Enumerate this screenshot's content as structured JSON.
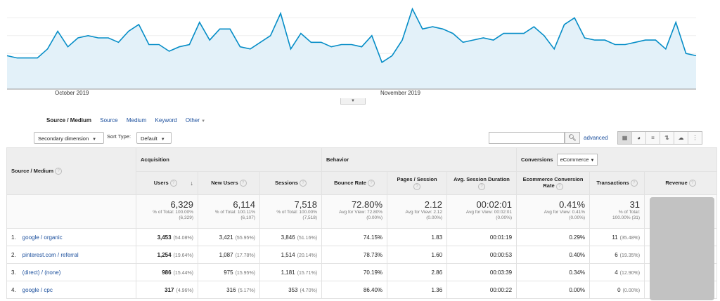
{
  "chart_data": {
    "type": "area",
    "x_labels": [
      "October 2019",
      "November 2019"
    ],
    "values": [
      15,
      14,
      14,
      14,
      18,
      26,
      19,
      23,
      24,
      23,
      23,
      21,
      26,
      29,
      20,
      20,
      17,
      19,
      20,
      30,
      22,
      27,
      27,
      19,
      18,
      21,
      24,
      34,
      18,
      25,
      21,
      21,
      19,
      20,
      20,
      19,
      24,
      12,
      15,
      22,
      36,
      27,
      28,
      27,
      25,
      21,
      22,
      23,
      22,
      25,
      25,
      25,
      28,
      24,
      18,
      29,
      32,
      23,
      22,
      22,
      20,
      20,
      21,
      22,
      22,
      18,
      30,
      16,
      15
    ],
    "ylim": [
      0,
      40
    ],
    "grid": true,
    "color": "#058dc7",
    "fill": "#e3f1f9"
  },
  "dimensions": {
    "primary_label": "Source / Medium",
    "links": [
      "Source",
      "Medium",
      "Keyword",
      "Other"
    ]
  },
  "toolbar": {
    "secondary": "Secondary dimension",
    "sort_label": "Sort Type:",
    "sort_value": "Default",
    "search_placeholder": "",
    "advanced": "advanced"
  },
  "table": {
    "group_headers": {
      "dimension": "Source / Medium",
      "acquisition": "Acquisition",
      "behavior": "Behavior",
      "conversions": "Conversions",
      "conversion_type": "eCommerce"
    },
    "columns": [
      "Users",
      "New Users",
      "Sessions",
      "Bounce Rate",
      "Pages / Session",
      "Avg. Session Duration",
      "Ecommerce Conversion Rate",
      "Transactions",
      "Revenue"
    ],
    "totals": {
      "users": {
        "value": "6,329",
        "sub1": "% of Total: 100.00%",
        "sub2": "(6,329)"
      },
      "new_users": {
        "value": "6,114",
        "sub1": "% of Total: 100.11%",
        "sub2": "(6,107)"
      },
      "sessions": {
        "value": "7,518",
        "sub1": "% of Total: 100.00%",
        "sub2": "(7,518)"
      },
      "bounce": {
        "value": "72.80%",
        "sub1": "Avg for View: 72.80%",
        "sub2": "(0.00%)"
      },
      "pages": {
        "value": "2.12",
        "sub1": "Avg for View: 2.12",
        "sub2": "(0.00%)"
      },
      "duration": {
        "value": "00:02:01",
        "sub1": "Avg for View: 00:02:01",
        "sub2": "(0.00%)"
      },
      "conv_rate": {
        "value": "0.41%",
        "sub1": "Avg for View: 0.41%",
        "sub2": "(0.00%)"
      },
      "transactions": {
        "value": "31",
        "sub1": "% of Total:",
        "sub2": "100.00% (31)"
      }
    },
    "rows": [
      {
        "idx": "1.",
        "source": "google / organic",
        "users": "3,453",
        "users_pct": "(54.08%)",
        "new_users": "3,421",
        "new_users_pct": "(55.95%)",
        "sessions": "3,846",
        "sessions_pct": "(51.16%)",
        "bounce": "74.15%",
        "pages": "1.83",
        "duration": "00:01:19",
        "conv_rate": "0.29%",
        "transactions": "11",
        "transactions_pct": "(35.48%)"
      },
      {
        "idx": "2.",
        "source": "pinterest.com / referral",
        "users": "1,254",
        "users_pct": "(19.64%)",
        "new_users": "1,087",
        "new_users_pct": "(17.78%)",
        "sessions": "1,514",
        "sessions_pct": "(20.14%)",
        "bounce": "78.73%",
        "pages": "1.60",
        "duration": "00:00:53",
        "conv_rate": "0.40%",
        "transactions": "6",
        "transactions_pct": "(19.35%)"
      },
      {
        "idx": "3.",
        "source": "(direct) / (none)",
        "users": "986",
        "users_pct": "(15.44%)",
        "new_users": "975",
        "new_users_pct": "(15.95%)",
        "sessions": "1,181",
        "sessions_pct": "(15.71%)",
        "bounce": "70.19%",
        "pages": "2.86",
        "duration": "00:03:39",
        "conv_rate": "0.34%",
        "transactions": "4",
        "transactions_pct": "(12.90%)"
      },
      {
        "idx": "4.",
        "source": "google / cpc",
        "users": "317",
        "users_pct": "(4.96%)",
        "new_users": "316",
        "new_users_pct": "(5.17%)",
        "sessions": "353",
        "sessions_pct": "(4.70%)",
        "bounce": "86.40%",
        "pages": "1.36",
        "duration": "00:00:22",
        "conv_rate": "0.00%",
        "transactions": "0",
        "transactions_pct": "(0.00%)"
      }
    ]
  }
}
